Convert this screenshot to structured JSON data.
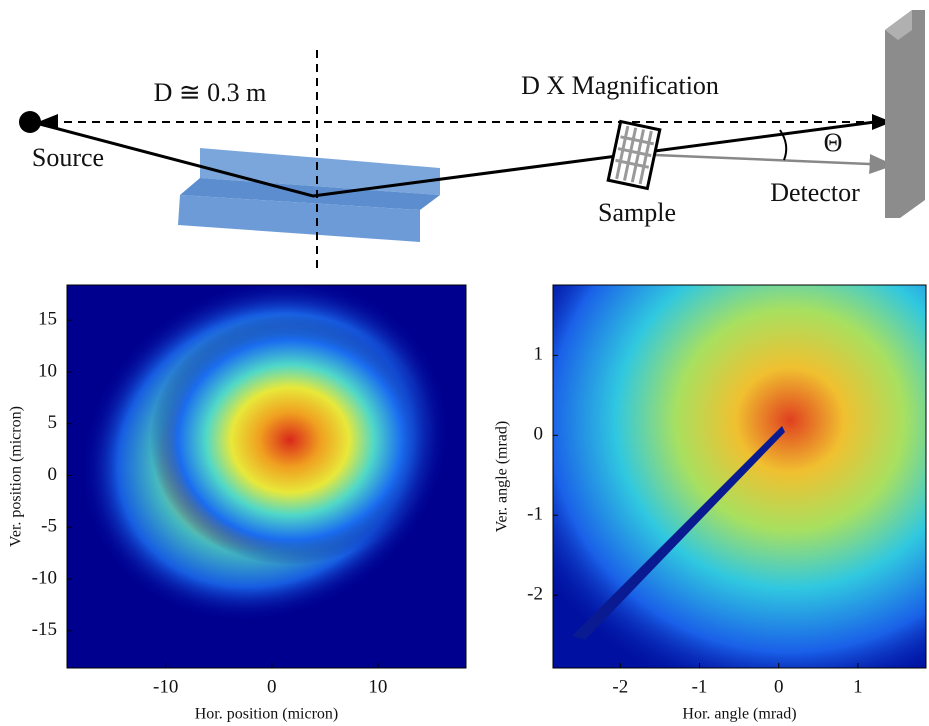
{
  "diagram": {
    "distance_label": "D ≅ 0.3 m",
    "magnification_label": "D X Magnification",
    "source": "Source",
    "sample": "Sample",
    "detector": "Detector",
    "angle": "Θ"
  },
  "chart_data": [
    {
      "type": "heatmap",
      "xlabel": "Hor. position (micron)",
      "ylabel": "Ver. position (micron)",
      "xlim": [
        -19.3,
        18.3
      ],
      "ylim": [
        -18.6,
        18.4
      ],
      "xticks": [
        -10,
        0,
        10
      ],
      "yticks": [
        -15,
        -10,
        -5,
        0,
        5,
        10,
        15
      ]
    },
    {
      "type": "heatmap",
      "xlabel": "Hor. angle (mrad)",
      "ylabel": "Ver. angle (mrad)",
      "xlim": [
        -2.85,
        1.86
      ],
      "ylim": [
        -2.91,
        1.88
      ],
      "xticks": [
        -2,
        -1,
        0,
        1
      ],
      "yticks": [
        -2,
        -1,
        0,
        1
      ]
    }
  ]
}
